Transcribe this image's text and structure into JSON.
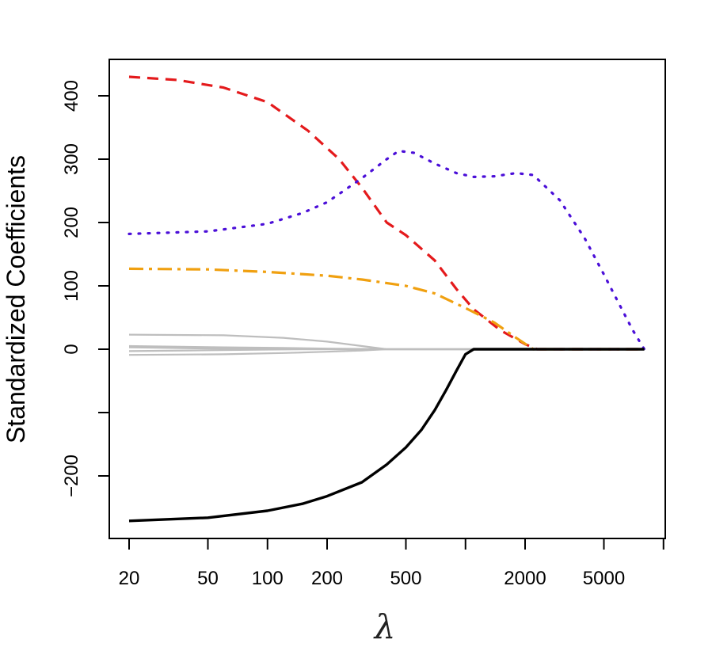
{
  "chart_data": {
    "type": "line",
    "xlabel": "λ",
    "ylabel": "Standardized Coefficients",
    "x_scale": "log",
    "xlim": [
      18,
      10000
    ],
    "ylim": [
      -300,
      460
    ],
    "x_ticks": [
      20,
      50,
      100,
      200,
      500,
      1000,
      2000,
      5000,
      10000
    ],
    "x_tick_labels": [
      "20",
      "50",
      "100",
      "200",
      "500",
      "",
      "2000",
      "5000",
      ""
    ],
    "y_ticks": [
      -200,
      -100,
      0,
      100,
      200,
      300,
      400
    ],
    "y_tick_labels": [
      "−200",
      "",
      "0",
      "100",
      "200",
      "300",
      "400"
    ],
    "grid": false,
    "legend": "none",
    "series": [
      {
        "color": "#e41a1c",
        "style": "dashed",
        "width": 3.2,
        "x": [
          20,
          35,
          60,
          100,
          160,
          230,
          300,
          400,
          500,
          700,
          900,
          1100,
          1500,
          2000,
          2300,
          8000
        ],
        "y": [
          430,
          425,
          413,
          390,
          345,
          300,
          255,
          200,
          180,
          140,
          95,
          63,
          30,
          8,
          0,
          0
        ]
      },
      {
        "color": "#4b0fd8",
        "style": "dotted",
        "width": 3.2,
        "x": [
          20,
          50,
          100,
          150,
          200,
          300,
          400,
          460,
          550,
          700,
          900,
          1100,
          1400,
          1800,
          2200,
          3000,
          4000,
          5000,
          6000,
          7000,
          8000
        ],
        "y": [
          182,
          186,
          198,
          215,
          232,
          270,
          300,
          313,
          310,
          293,
          278,
          272,
          273,
          278,
          275,
          235,
          175,
          118,
          70,
          30,
          0
        ]
      },
      {
        "color": "#f0a010",
        "style": "dashdot",
        "width": 3.2,
        "x": [
          20,
          50,
          100,
          200,
          300,
          500,
          700,
          1000,
          1400,
          1800,
          2200,
          8000
        ],
        "y": [
          127,
          126,
          122,
          116,
          110,
          100,
          88,
          65,
          42,
          18,
          0,
          0
        ]
      },
      {
        "color": "#000000",
        "style": "solid",
        "width": 3.4,
        "x": [
          20,
          50,
          100,
          150,
          200,
          300,
          400,
          500,
          600,
          700,
          800,
          900,
          1000,
          1100,
          1150,
          8000
        ],
        "y": [
          -271,
          -266,
          -255,
          -244,
          -232,
          -210,
          -182,
          -155,
          -127,
          -96,
          -64,
          -34,
          -8,
          0,
          0,
          0
        ]
      },
      {
        "color": "#bebebe",
        "style": "solid",
        "width": 2.2,
        "x": [
          20,
          60,
          120,
          200,
          300,
          400,
          8000
        ],
        "y": [
          23,
          22,
          18,
          12,
          5,
          0,
          0
        ]
      },
      {
        "color": "#bebebe",
        "style": "solid",
        "width": 2.2,
        "x": [
          20,
          60,
          120,
          200,
          300,
          400,
          8000
        ],
        "y": [
          5,
          3,
          2,
          1,
          0.5,
          0,
          0
        ]
      },
      {
        "color": "#bebebe",
        "style": "solid",
        "width": 2.2,
        "x": [
          20,
          40,
          70,
          100,
          8000
        ],
        "y": [
          3,
          1.5,
          0.5,
          0,
          0
        ]
      },
      {
        "color": "#bebebe",
        "style": "solid",
        "width": 2.2,
        "x": [
          20,
          40,
          80,
          150,
          8000
        ],
        "y": [
          -3,
          -2,
          -1,
          0,
          0
        ]
      },
      {
        "color": "#bebebe",
        "style": "solid",
        "width": 2.2,
        "x": [
          20,
          60,
          120,
          200,
          300,
          400,
          8000
        ],
        "y": [
          -9,
          -8,
          -6,
          -4,
          -2,
          0,
          0
        ]
      }
    ]
  }
}
